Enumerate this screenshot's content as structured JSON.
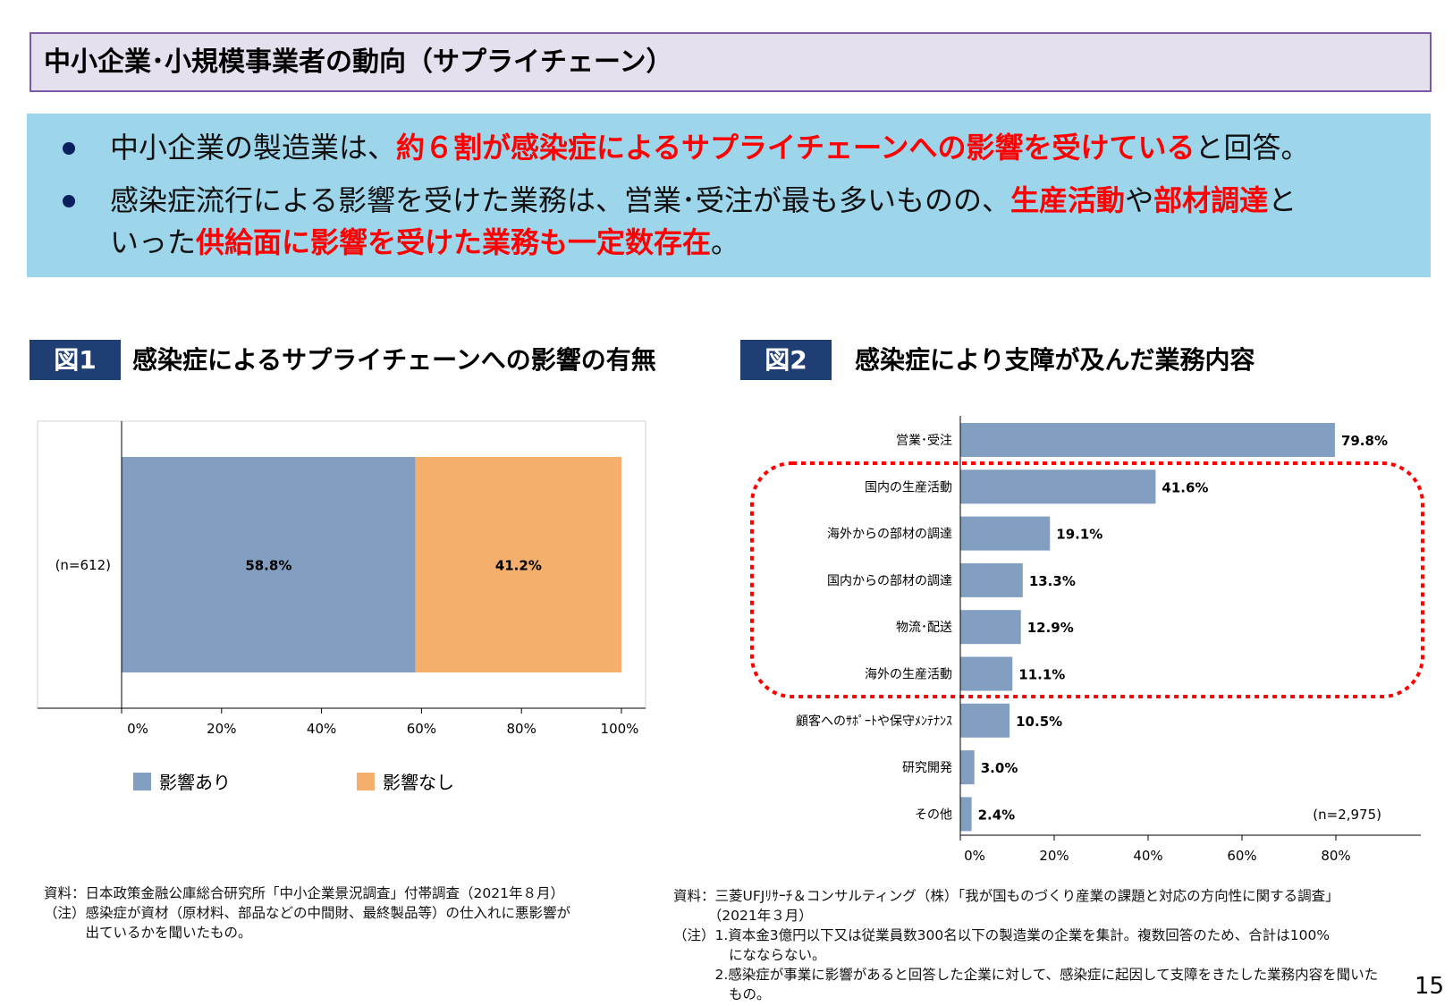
{
  "title": "中小企業･小規模事業者の動向（サプライチェーン）",
  "summary": {
    "bullet1": {
      "pre": "中小企業の製造業は、",
      "em": "約６割が感染症によるサプライチェーンへの影響を受けている",
      "post": "と回答。"
    },
    "bullet2": {
      "pre": "感染症流行による影響を受けた業務は、営業･受注が最も多いものの、",
      "em1": "生産活動",
      "mid": "や",
      "em2": "部材調達",
      "post": "と",
      "line2_pre": "いった",
      "em3": "供給面に影響を受けた業務も一定数存在",
      "line2_post": "。"
    }
  },
  "fig1": {
    "label": "図1",
    "title": "感染症によるサプライチェーンへの影響の有無"
  },
  "fig2": {
    "label": "図2",
    "title": "感染症により支障が及んだ業務内容"
  },
  "colors": {
    "series_blue": "#829fc1",
    "series_orange": "#f4af6c",
    "highlight_red": "#ff0000",
    "fig_label_bg": "#1f3f74",
    "summary_bg": "#9dd5ea",
    "title_bg": "#e6e0ee"
  },
  "chart_data": [
    {
      "type": "bar",
      "orientation": "horizontal",
      "stacked": true,
      "categories": [
        "(n=612)"
      ],
      "series": [
        {
          "name": "影響あり",
          "values": [
            58.8
          ],
          "color": "#829fc1"
        },
        {
          "name": "影響なし",
          "values": [
            41.2
          ],
          "color": "#f4af6c"
        }
      ],
      "data_labels": [
        "58.8%",
        "41.2%"
      ],
      "xlim": [
        0,
        100
      ],
      "xticks": [
        "0%",
        "20%",
        "40%",
        "60%",
        "80%",
        "100%"
      ],
      "legend": "bottom"
    },
    {
      "type": "bar",
      "orientation": "horizontal",
      "categories": [
        "営業･受注",
        "国内の生産活動",
        "海外からの部材の調達",
        "国内からの部材の調達",
        "物流･配送",
        "海外の生産活動",
        "顧客へのｻﾎﾟｰﾄや保守ﾒﾝﾃﾅﾝｽ",
        "研究開発",
        "その他"
      ],
      "values": [
        79.8,
        41.6,
        19.1,
        13.3,
        12.9,
        11.1,
        10.5,
        3.0,
        2.4
      ],
      "data_labels": [
        "79.8%",
        "41.6%",
        "19.1%",
        "13.3%",
        "12.9%",
        "11.1%",
        "10.5%",
        "3.0%",
        "2.4%"
      ],
      "xlim": [
        0,
        90
      ],
      "xticks": [
        "0%",
        "20%",
        "40%",
        "60%",
        "80%"
      ],
      "annotation": "(n=2,975)",
      "highlighted_categories": [
        "国内の生産活動",
        "海外からの部材の調達",
        "国内からの部材の調達",
        "物流･配送",
        "海外の生産活動"
      ]
    }
  ],
  "footnotes": {
    "left": [
      "資料：日本政策金融公庫総合研究所「中小企業景況調査」付帯調査（2021年８月）",
      "（注）感染症が資材（原材料、部品などの中間財、最終製品等）の仕入れに悪影響が",
      "　　　出ているかを聞いたもの。"
    ],
    "right": [
      "資料：三菱UFJﾘｻｰﾁ＆コンサルティング（株）「我が国ものづくり産業の課題と対応の方向性に関する調査」",
      "　　　（2021年３月）",
      "（注）1.資本金3億円以下又は従業員数300名以下の製造業の企業を集計。複数回答のため、合計は100%",
      "　　　　になならない。",
      "　　　2.感染症が事業に影響があると回答した企業に対して、感染症に起因して支障をきたした業務内容を聞いた",
      "　　　　もの。"
    ]
  },
  "page_number": "15"
}
